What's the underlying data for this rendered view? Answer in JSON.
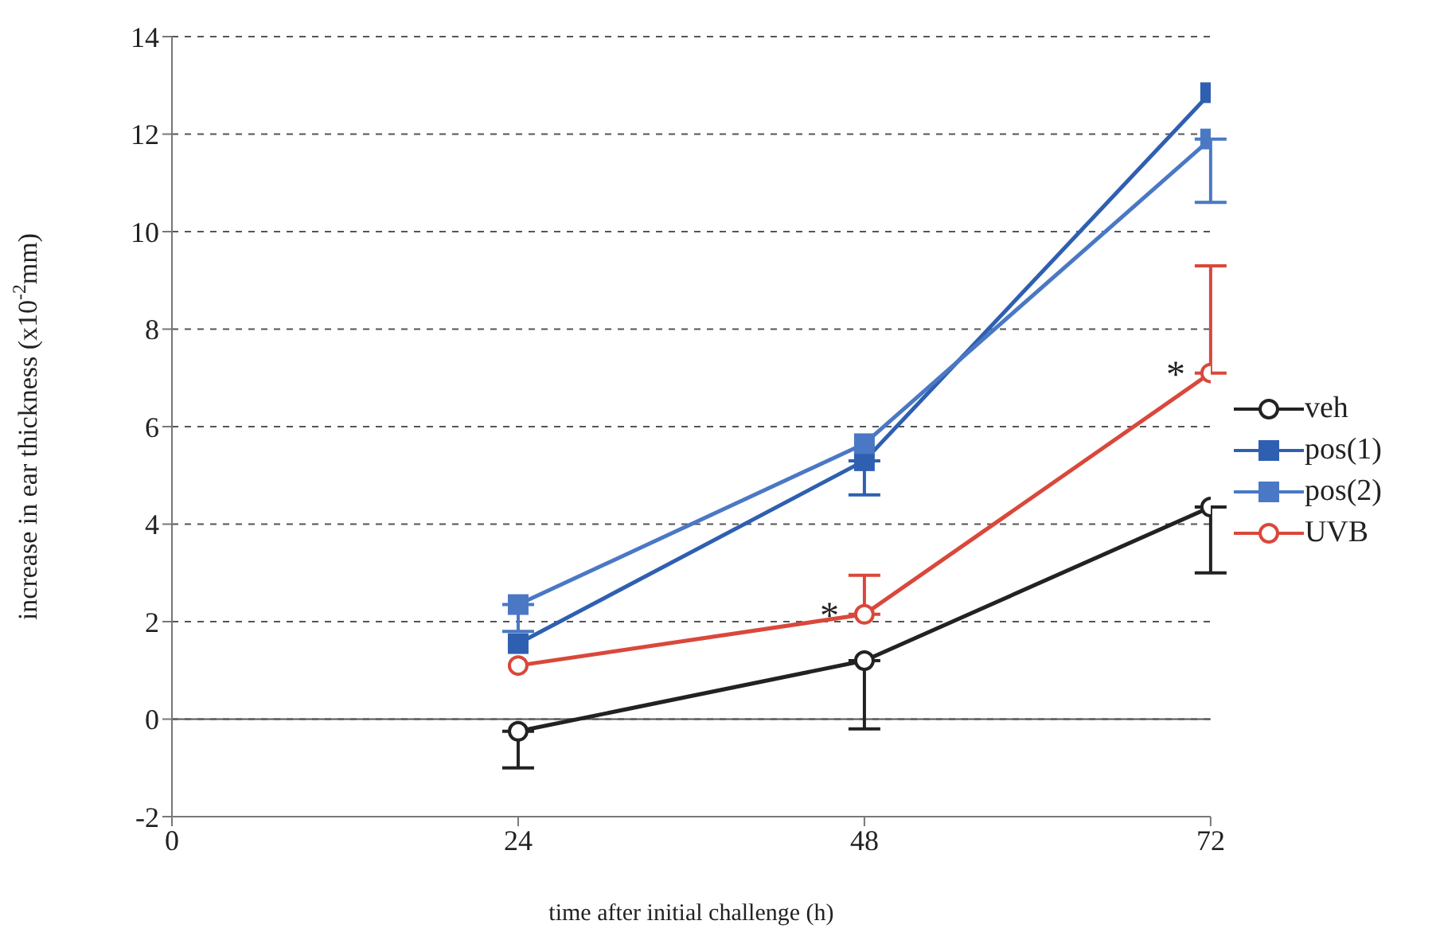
{
  "chart_data": {
    "type": "line",
    "xlabel": "time after initial challenge (h)",
    "ylabel": "increase in ear thickness (x10$^{-2}$mm)",
    "x": [
      24,
      48,
      72
    ],
    "xlim": [
      0,
      72
    ],
    "xticks": [
      0,
      24,
      48,
      72
    ],
    "ylim": [
      -2,
      14
    ],
    "yticks": [
      -2,
      0,
      2,
      4,
      6,
      8,
      10,
      12,
      14
    ],
    "grid": "y",
    "legend": "right",
    "series": [
      {
        "name": "veh",
        "color": "#222222",
        "marker": "circle",
        "values": [
          -0.25,
          1.2,
          4.35
        ],
        "errors": [
          [
            -1.0,
            -0.25
          ],
          [
            -0.2,
            1.2
          ],
          [
            3.0,
            4.35
          ]
        ]
      },
      {
        "name": "pos(1)",
        "color": "#2f5fb0",
        "marker": "square",
        "values": [
          1.55,
          5.3,
          12.85
        ],
        "errors": [
          null,
          [
            4.6,
            5.3
          ],
          null
        ]
      },
      {
        "name": "pos(2)",
        "color": "#4a78c4",
        "marker": "square",
        "values": [
          2.35,
          5.65,
          11.9
        ],
        "errors": [
          [
            1.8,
            2.35
          ],
          null,
          [
            10.6,
            11.9
          ]
        ]
      },
      {
        "name": "UVB",
        "color": "#d9483b",
        "marker": "circle",
        "values": [
          1.1,
          2.15,
          7.1
        ],
        "errors": [
          null,
          [
            2.15,
            2.95
          ],
          [
            7.1,
            9.3
          ]
        ]
      }
    ],
    "annotations": [
      {
        "text": "*",
        "x": 48,
        "y": 2.15
      },
      {
        "text": "*",
        "x": 72,
        "y": 7.1
      }
    ]
  }
}
